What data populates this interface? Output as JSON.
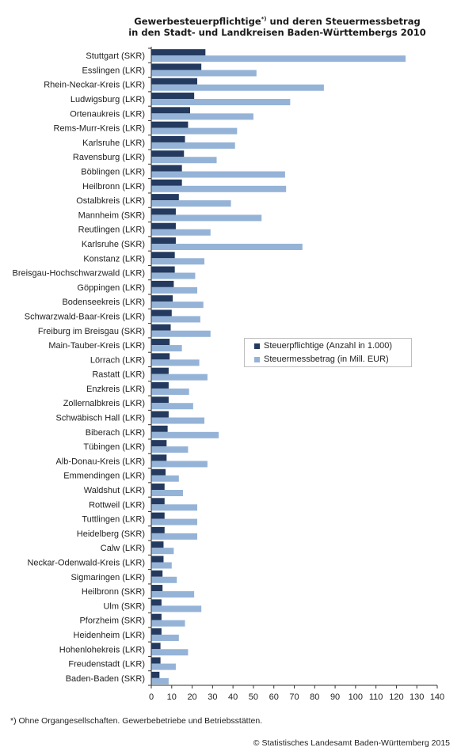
{
  "title": {
    "line1_main": "Gewerbesteuerpflichtige",
    "line1_sup": "*)",
    "line1_rest": " und deren Steuermessbetrag",
    "line2": "in den Stadt- und Landkreisen Baden-Württembergs 2010"
  },
  "legend": {
    "series1": "Steuerpflichtige (Anzahl in 1.000)",
    "series2": "Steuermessbetrag (in Mill. EUR)"
  },
  "footnote": "*) Ohne Organgesellschaften. Gewerbebetriebe und Betriebsstätten.",
  "source": "© Statistisches Landesamt Baden-Württemberg 2015",
  "colors": {
    "series1": "#243a5e",
    "series2": "#95b3d7",
    "axis": "#333333"
  },
  "chart_data": {
    "type": "bar",
    "orientation": "horizontal",
    "xlim": [
      0,
      140
    ],
    "xticks": [
      0,
      10,
      20,
      30,
      40,
      50,
      60,
      70,
      80,
      90,
      100,
      110,
      120,
      130,
      140
    ],
    "grid": false,
    "legend_position": "center-right",
    "categories": [
      "Stuttgart (SKR)",
      "Esslingen (LKR)",
      "Rhein-Neckar-Kreis (LKR)",
      "Ludwigsburg (LKR)",
      "Ortenaukreis (LKR)",
      "Rems-Murr-Kreis (LKR)",
      "Karlsruhe (LKR)",
      "Ravensburg (LKR)",
      "Böblingen (LKR)",
      "Heilbronn (LKR)",
      "Ostalbkreis (LKR)",
      "Mannheim (SKR)",
      "Reutlingen (LKR)",
      "Karlsruhe (SKR)",
      "Konstanz (LKR)",
      "Breisgau-Hochschwarzwald (LKR)",
      "Göppingen (LKR)",
      "Bodenseekreis (LKR)",
      "Schwarzwald-Baar-Kreis (LKR)",
      "Freiburg im Breisgau (SKR)",
      "Main-Tauber-Kreis (LKR)",
      "Lörrach (LKR)",
      "Rastatt (LKR)",
      "Enzkreis (LKR)",
      "Zollernalbkreis (LKR)",
      "Schwäbisch Hall (LKR)",
      "Biberach (LKR)",
      "Tübingen (LKR)",
      "Alb-Donau-Kreis (LKR)",
      "Emmendingen (LKR)",
      "Waldshut (LKR)",
      "Rottweil (LKR)",
      "Tuttlingen (LKR)",
      "Heidelberg (SKR)",
      "Calw (LKR)",
      "Neckar-Odenwald-Kreis (LKR)",
      "Sigmaringen (LKR)",
      "Heilbronn (SKR)",
      "Ulm (SKR)",
      "Pforzheim (SKR)",
      "Heidenheim (LKR)",
      "Hohenlohekreis (LKR)",
      "Freudenstadt (LKR)",
      "Baden-Baden (SKR)"
    ],
    "series": [
      {
        "name": "Steuerpflichtige (Anzahl in 1.000)",
        "values": [
          26.5,
          24.5,
          22.5,
          21,
          19,
          18,
          16.5,
          16,
          15,
          15,
          13.5,
          12,
          12,
          12,
          11.5,
          11.5,
          11,
          10.5,
          10,
          9.5,
          9,
          9,
          8.5,
          8.5,
          8.5,
          8.5,
          8,
          7.5,
          7.5,
          7,
          6.5,
          6.5,
          6.5,
          6.5,
          6,
          6,
          5.5,
          5.5,
          5,
          5,
          5,
          4.5,
          4.5,
          4
        ]
      },
      {
        "name": "Steuermessbetrag (in Mill. EUR)",
        "values": [
          124.5,
          51.5,
          84.5,
          68,
          50,
          42,
          41,
          32,
          65.5,
          66,
          39,
          54,
          29,
          74,
          26,
          21.5,
          22.5,
          25.5,
          24,
          29,
          15,
          23.5,
          27.5,
          18.5,
          20.5,
          26,
          33,
          18,
          27.5,
          13.5,
          15.5,
          22.5,
          22.5,
          22.5,
          11,
          10,
          12.5,
          21,
          24.5,
          16.5,
          13.5,
          18,
          12,
          8.5
        ]
      }
    ]
  }
}
